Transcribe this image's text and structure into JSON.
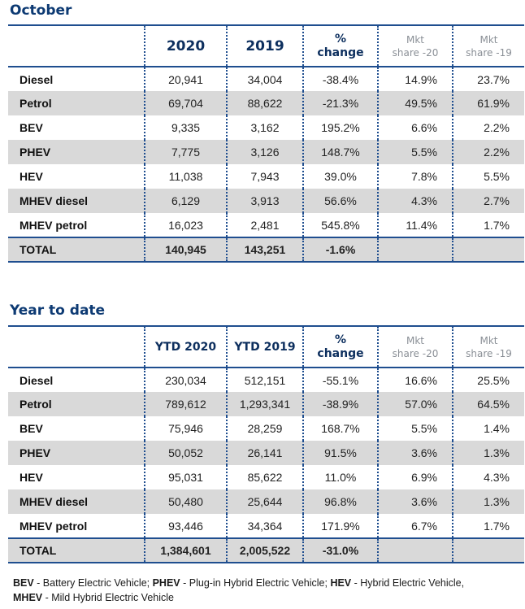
{
  "october": {
    "title": "October",
    "headers": {
      "year1": "2020",
      "year2": "2019",
      "change_line1": "%",
      "change_line2": "change",
      "share1_line1": "Mkt",
      "share1_line2": "share -20",
      "share2_line1": "Mkt",
      "share2_line2": "share -19"
    },
    "rows": [
      {
        "label": "Diesel",
        "y1": "20,941",
        "y2": "34,004",
        "change": "-38.4%",
        "share1": "14.9%",
        "share2": "23.7%"
      },
      {
        "label": "Petrol",
        "y1": "69,704",
        "y2": "88,622",
        "change": "-21.3%",
        "share1": "49.5%",
        "share2": "61.9%"
      },
      {
        "label": "BEV",
        "y1": "9,335",
        "y2": "3,162",
        "change": "195.2%",
        "share1": "6.6%",
        "share2": "2.2%"
      },
      {
        "label": "PHEV",
        "y1": "7,775",
        "y2": "3,126",
        "change": "148.7%",
        "share1": "5.5%",
        "share2": "2.2%"
      },
      {
        "label": "HEV",
        "y1": "11,038",
        "y2": "7,943",
        "change": "39.0%",
        "share1": "7.8%",
        "share2": "5.5%"
      },
      {
        "label": "MHEV diesel",
        "y1": "6,129",
        "y2": "3,913",
        "change": "56.6%",
        "share1": "4.3%",
        "share2": "2.7%"
      },
      {
        "label": "MHEV petrol",
        "y1": "16,023",
        "y2": "2,481",
        "change": "545.8%",
        "share1": "11.4%",
        "share2": "1.7%"
      }
    ],
    "total": {
      "label": "TOTAL",
      "y1": "140,945",
      "y2": "143,251",
      "change": "-1.6%"
    }
  },
  "ytd": {
    "title": "Year to date",
    "headers": {
      "year1": "YTD 2020",
      "year2": "YTD 2019",
      "change_line1": "%",
      "change_line2": "change",
      "share1_line1": "Mkt",
      "share1_line2": "share -20",
      "share2_line1": "Mkt",
      "share2_line2": "share -19"
    },
    "rows": [
      {
        "label": "Diesel",
        "y1": "230,034",
        "y2": "512,151",
        "change": "-55.1%",
        "share1": "16.6%",
        "share2": "25.5%"
      },
      {
        "label": "Petrol",
        "y1": "789,612",
        "y2": "1,293,341",
        "change": "-38.9%",
        "share1": "57.0%",
        "share2": "64.5%"
      },
      {
        "label": "BEV",
        "y1": "75,946",
        "y2": "28,259",
        "change": "168.7%",
        "share1": "5.5%",
        "share2": "1.4%"
      },
      {
        "label": "PHEV",
        "y1": "50,052",
        "y2": "26,141",
        "change": "91.5%",
        "share1": "3.6%",
        "share2": "1.3%"
      },
      {
        "label": "HEV",
        "y1": "95,031",
        "y2": "85,622",
        "change": "11.0%",
        "share1": "6.9%",
        "share2": "4.3%"
      },
      {
        "label": "MHEV diesel",
        "y1": "50,480",
        "y2": "25,644",
        "change": "96.8%",
        "share1": "3.6%",
        "share2": "1.3%"
      },
      {
        "label": "MHEV petrol",
        "y1": "93,446",
        "y2": "34,364",
        "change": "171.9%",
        "share1": "6.7%",
        "share2": "1.7%"
      }
    ],
    "total": {
      "label": "TOTAL",
      "y1": "1,384,601",
      "y2": "2,005,522",
      "change": "-31.0%"
    }
  },
  "legend": {
    "bev_abbr": "BEV",
    "bev_text": " - Battery Electric Vehicle; ",
    "phev_abbr": "PHEV",
    "phev_text": " - Plug-in Hybrid Electric Vehicle; ",
    "hev_abbr": "HEV",
    "hev_text": " - Hybrid Electric Vehicle,",
    "mhev_abbr": "MHEV",
    "mhev_text": " - Mild Hybrid Electric Vehicle"
  }
}
